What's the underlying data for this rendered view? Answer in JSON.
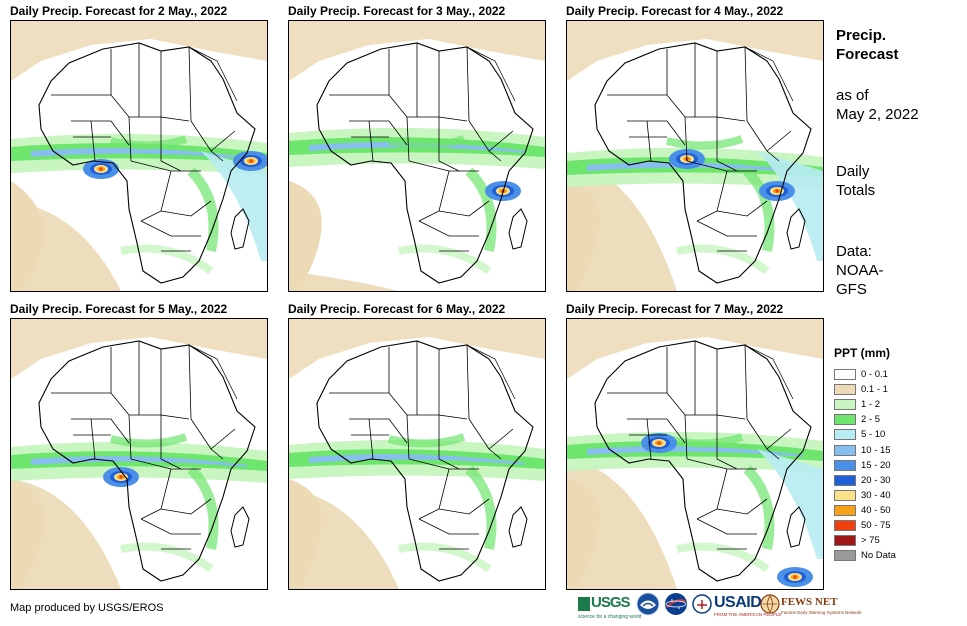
{
  "panels": [
    {
      "title": "Daily Precip. Forecast for 2 May., 2022"
    },
    {
      "title": "Daily Precip. Forecast for 3 May., 2022"
    },
    {
      "title": "Daily Precip. Forecast for 4 May., 2022"
    },
    {
      "title": "Daily Precip. Forecast for 5 May., 2022"
    },
    {
      "title": "Daily Precip. Forecast for 6 May., 2022"
    },
    {
      "title": "Daily Precip. Forecast for 7 May., 2022"
    }
  ],
  "side": {
    "title_line1": "Precip.",
    "title_line2": "Forecast",
    "asof_line1": "as of",
    "asof_line2": "May 2, 2022",
    "totals_line1": "Daily",
    "totals_line2": "Totals",
    "data_line1": "Data:",
    "data_line2": "NOAA-",
    "data_line3": "GFS"
  },
  "legend": {
    "title": "PPT (mm)",
    "items": [
      {
        "label": "0 - 0.1",
        "color": "#ffffff"
      },
      {
        "label": "0.1 - 1",
        "color": "#ecd9b5"
      },
      {
        "label": "1 - 2",
        "color": "#c8f5c0"
      },
      {
        "label": "2 - 5",
        "color": "#6ee66e"
      },
      {
        "label": "5 - 10",
        "color": "#b7ecf2"
      },
      {
        "label": "10 - 15",
        "color": "#88bdf0"
      },
      {
        "label": "15 - 20",
        "color": "#4a90e8"
      },
      {
        "label": "20 - 30",
        "color": "#1f5fd8"
      },
      {
        "label": "30 - 40",
        "color": "#fbe28a"
      },
      {
        "label": "40 - 50",
        "color": "#f5a21a"
      },
      {
        "label": "50 - 75",
        "color": "#f04010"
      },
      {
        "label": "> 75",
        "color": "#a01515"
      },
      {
        "label": "No Data",
        "color": "#999999"
      }
    ]
  },
  "footer": {
    "credit": "Map produced by USGS/EROS",
    "logo_usgs": "USGS",
    "logo_usgs_tag": "science for a changing world",
    "logo_usaid": "USAID",
    "logo_usaid_tag": "FROM THE AMERICAN PEOPLE",
    "logo_fews": "FEWS NET",
    "logo_fews_tag": "Famine Early Warning Systems Network"
  }
}
